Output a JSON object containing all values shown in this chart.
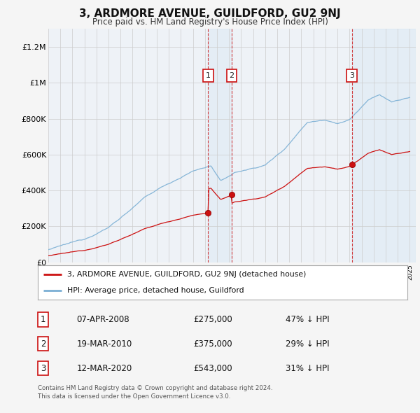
{
  "title": "3, ARDMORE AVENUE, GUILDFORD, GU2 9NJ",
  "subtitle": "Price paid vs. HM Land Registry's House Price Index (HPI)",
  "ylim": [
    0,
    1300000
  ],
  "yticks": [
    0,
    200000,
    400000,
    600000,
    800000,
    1000000,
    1200000
  ],
  "ytick_labels": [
    "£0",
    "£200K",
    "£400K",
    "£600K",
    "£800K",
    "£1M",
    "£1.2M"
  ],
  "background_color": "#f5f5f5",
  "plot_bg_color": "#f0f4f8",
  "hpi_color": "#7bafd4",
  "price_color": "#cc1111",
  "purchases": [
    {
      "date_num": 2008.27,
      "price": 275000,
      "label": "1"
    },
    {
      "date_num": 2010.22,
      "price": 375000,
      "label": "2"
    },
    {
      "date_num": 2020.2,
      "price": 543000,
      "label": "3"
    }
  ],
  "legend_property": "3, ARDMORE AVENUE, GUILDFORD, GU2 9NJ (detached house)",
  "legend_hpi": "HPI: Average price, detached house, Guildford",
  "table_rows": [
    {
      "num": "1",
      "date": "07-APR-2008",
      "price": "£275,000",
      "pct": "47% ↓ HPI"
    },
    {
      "num": "2",
      "date": "19-MAR-2010",
      "price": "£375,000",
      "pct": "29% ↓ HPI"
    },
    {
      "num": "3",
      "date": "12-MAR-2020",
      "price": "£543,000",
      "pct": "31% ↓ HPI"
    }
  ],
  "footer": "Contains HM Land Registry data © Crown copyright and database right 2024.\nThis data is licensed under the Open Government Licence v3.0."
}
